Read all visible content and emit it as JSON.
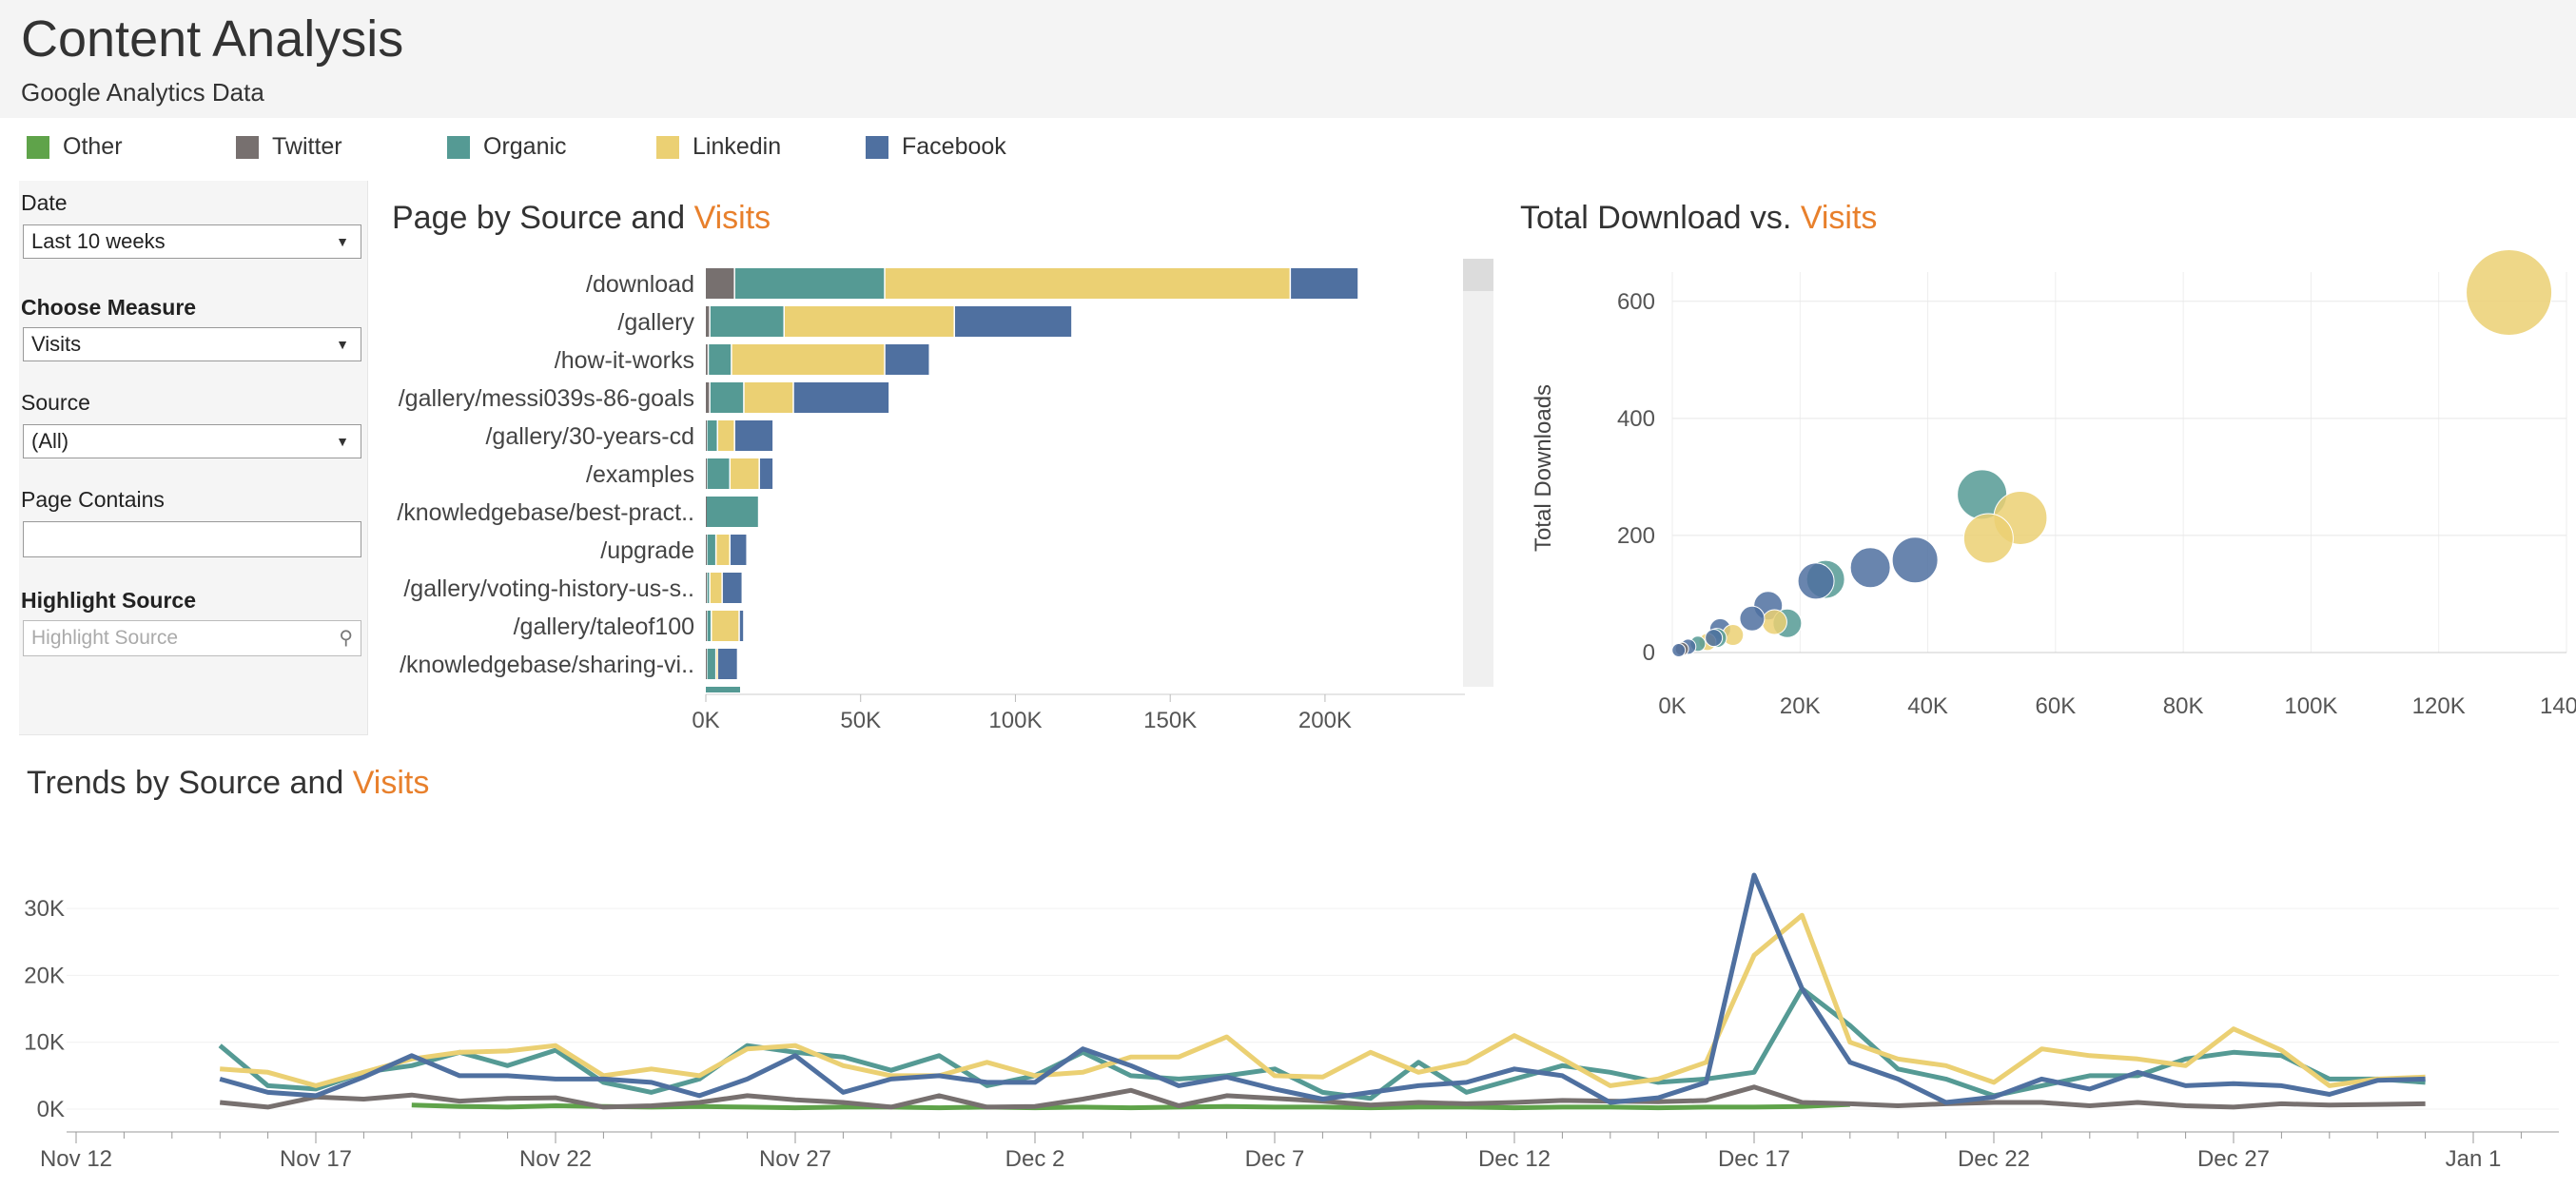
{
  "header": {
    "title": "Content Analysis",
    "subtitle": "Google Analytics Data"
  },
  "legend": [
    {
      "label": "Other",
      "color": "#5fa34a"
    },
    {
      "label": "Twitter",
      "color": "#77706f"
    },
    {
      "label": "Organic",
      "color": "#559a94"
    },
    {
      "label": "Linkedin",
      "color": "#ebd073"
    },
    {
      "label": "Facebook",
      "color": "#4f70a0"
    }
  ],
  "filters": {
    "date_label": "Date",
    "date_value": "Last 10 weeks",
    "measure_label": "Choose Measure",
    "measure_value": "Visits",
    "source_label": "Source",
    "source_value": "(All)",
    "page_contains_label": "Page Contains",
    "page_contains_value": "",
    "highlight_label": "Highlight Source",
    "highlight_placeholder": "Highlight Source"
  },
  "bar_title": {
    "prefix": "Page by Source and ",
    "accent": "Visits"
  },
  "scatter_title": {
    "prefix": "Total Download vs. ",
    "accent": "Visits"
  },
  "trend_title": {
    "prefix": "Trends by Source and ",
    "accent": "Visits"
  },
  "chart_data": [
    {
      "type": "bar",
      "orientation": "horizontal-stacked",
      "categories": [
        "/download",
        "/gallery",
        "/how-it-works",
        "/gallery/messi039s-86-goals",
        "/gallery/30-years-cd",
        "/examples",
        "/knowledgebase/best-pract..",
        "/upgrade",
        "/gallery/voting-history-us-s..",
        "/gallery/taleof100",
        "/knowledgebase/sharing-vi.."
      ],
      "series": [
        {
          "name": "Other",
          "values": [
            0,
            0,
            0,
            0,
            0,
            0,
            0,
            0,
            0,
            0,
            0
          ]
        },
        {
          "name": "Twitter",
          "values": [
            9500,
            1500,
            1000,
            1500,
            500,
            500,
            300,
            500,
            500,
            500,
            500
          ]
        },
        {
          "name": "Organic",
          "values": [
            48500,
            24000,
            7500,
            11000,
            3500,
            7500,
            17000,
            3000,
            1000,
            1500,
            3000
          ]
        },
        {
          "name": "Linkedin",
          "values": [
            131000,
            55000,
            49500,
            16000,
            5500,
            9500,
            0,
            4500,
            4000,
            9000,
            500
          ]
        },
        {
          "name": "Facebook",
          "values": [
            22000,
            38000,
            14500,
            31000,
            12500,
            4500,
            0,
            5500,
            6500,
            1500,
            6500
          ]
        }
      ],
      "xlim": [
        0,
        220000
      ],
      "xticks": [
        "0K",
        "50K",
        "100K",
        "150K",
        "200K"
      ]
    },
    {
      "type": "scatter",
      "ylabel": "Total Downloads",
      "xlim": [
        0,
        140000
      ],
      "ylim": [
        0,
        650
      ],
      "xticks": [
        "0K",
        "20K",
        "40K",
        "60K",
        "80K",
        "100K",
        "120K",
        "140K"
      ],
      "yticks": [
        "0",
        "200",
        "400",
        "600"
      ],
      "points": [
        {
          "series": "Linkedin",
          "x": 131000,
          "y": 615,
          "r": 90
        },
        {
          "series": "Organic",
          "x": 48500,
          "y": 270,
          "r": 52
        },
        {
          "series": "Linkedin",
          "x": 54500,
          "y": 230,
          "r": 56
        },
        {
          "series": "Linkedin",
          "x": 49500,
          "y": 195,
          "r": 52
        },
        {
          "series": "Facebook",
          "x": 38000,
          "y": 158,
          "r": 48
        },
        {
          "series": "Facebook",
          "x": 31000,
          "y": 145,
          "r": 42
        },
        {
          "series": "Organic",
          "x": 24000,
          "y": 125,
          "r": 40
        },
        {
          "series": "Facebook",
          "x": 22500,
          "y": 122,
          "r": 38
        },
        {
          "series": "Facebook",
          "x": 15000,
          "y": 80,
          "r": 30
        },
        {
          "series": "Organic",
          "x": 18000,
          "y": 50,
          "r": 30
        },
        {
          "series": "Linkedin",
          "x": 16000,
          "y": 52,
          "r": 26
        },
        {
          "series": "Facebook",
          "x": 12500,
          "y": 58,
          "r": 26
        },
        {
          "series": "Facebook",
          "x": 7500,
          "y": 40,
          "r": 22
        },
        {
          "series": "Linkedin",
          "x": 9500,
          "y": 30,
          "r": 22
        },
        {
          "series": "Organic",
          "x": 7000,
          "y": 25,
          "r": 20
        },
        {
          "series": "Linkedin",
          "x": 5500,
          "y": 18,
          "r": 18
        },
        {
          "series": "Facebook",
          "x": 6500,
          "y": 25,
          "r": 18
        },
        {
          "series": "Organic",
          "x": 4000,
          "y": 15,
          "r": 16
        },
        {
          "series": "Facebook",
          "x": 2500,
          "y": 10,
          "r": 16
        },
        {
          "series": "Twitter",
          "x": 1500,
          "y": 6,
          "r": 14
        },
        {
          "series": "Facebook",
          "x": 1000,
          "y": 4,
          "r": 14
        }
      ]
    },
    {
      "type": "line",
      "ylim": [
        0,
        35000
      ],
      "yticks": [
        "0K",
        "10K",
        "20K",
        "30K"
      ],
      "xticks": [
        "Nov 12",
        "Nov 17",
        "Nov 22",
        "Nov 27",
        "Dec 2",
        "Dec 7",
        "Dec 12",
        "Dec 17",
        "Dec 22",
        "Dec 27",
        "Jan 1"
      ],
      "x_dates": [
        "Nov 15",
        "Nov 16",
        "Nov 17",
        "Nov 18",
        "Nov 19",
        "Nov 20",
        "Nov 21",
        "Nov 22",
        "Nov 23",
        "Nov 24",
        "Nov 25",
        "Nov 26",
        "Nov 27",
        "Nov 28",
        "Nov 29",
        "Nov 30",
        "Dec 1",
        "Dec 2",
        "Dec 3",
        "Dec 4",
        "Dec 5",
        "Dec 6",
        "Dec 7",
        "Dec 8",
        "Dec 9",
        "Dec 10",
        "Dec 11",
        "Dec 12",
        "Dec 13",
        "Dec 14",
        "Dec 15",
        "Dec 16",
        "Dec 17",
        "Dec 18",
        "Dec 19",
        "Dec 20",
        "Dec 21",
        "Dec 22",
        "Dec 23",
        "Dec 24",
        "Dec 25",
        "Dec 26",
        "Dec 27",
        "Dec 28",
        "Dec 29",
        "Dec 30",
        "Dec 31"
      ],
      "series": [
        {
          "name": "Other",
          "values": [
            null,
            null,
            null,
            null,
            600,
            400,
            300,
            500,
            400,
            300,
            400,
            300,
            200,
            300,
            300,
            200,
            300,
            200,
            300,
            200,
            300,
            400,
            300,
            300,
            200,
            300,
            300,
            200,
            300,
            300,
            200,
            300,
            300,
            400,
            700,
            null,
            null,
            null,
            null,
            null,
            null,
            null,
            null,
            null,
            null,
            null,
            null
          ]
        },
        {
          "name": "Twitter",
          "values": [
            1000,
            300,
            1800,
            1500,
            2100,
            1200,
            1600,
            1700,
            300,
            500,
            1000,
            2000,
            1400,
            1000,
            300,
            2000,
            300,
            400,
            1500,
            2800,
            500,
            2000,
            1600,
            1200,
            600,
            1000,
            800,
            1000,
            1300,
            1200,
            1100,
            1300,
            3300,
            1000,
            800,
            500,
            800,
            1000,
            1000,
            500,
            1000,
            500,
            300,
            800,
            600,
            700,
            800
          ]
        },
        {
          "name": "Organic",
          "values": [
            9500,
            3500,
            3000,
            5500,
            6500,
            8500,
            6500,
            8800,
            4000,
            2500,
            4500,
            9500,
            8500,
            7800,
            5800,
            8000,
            3500,
            5000,
            8500,
            5000,
            4500,
            5000,
            6000,
            2500,
            1600,
            7000,
            2500,
            4500,
            6500,
            5500,
            4000,
            4500,
            5500,
            18000,
            12500,
            6000,
            4500,
            2000,
            3500,
            5000,
            5000,
            7500,
            8500,
            8000,
            4500,
            4500,
            4000
          ]
        },
        {
          "name": "Linkedin",
          "values": [
            6000,
            5500,
            3500,
            5500,
            7500,
            8500,
            8700,
            9500,
            5000,
            6000,
            5000,
            9000,
            9500,
            6500,
            5000,
            5000,
            7000,
            5000,
            5500,
            7800,
            7800,
            10800,
            5000,
            4800,
            8500,
            5500,
            7000,
            11000,
            7500,
            3500,
            4500,
            7000,
            23000,
            29000,
            10000,
            7500,
            6500,
            4000,
            9000,
            8000,
            7500,
            6500,
            12000,
            8800,
            3500,
            4500,
            4800
          ]
        },
        {
          "name": "Facebook",
          "values": [
            4500,
            2500,
            2000,
            4800,
            8000,
            5000,
            5000,
            4500,
            4500,
            4000,
            2000,
            4500,
            8000,
            2500,
            4500,
            5000,
            4000,
            4000,
            9000,
            6500,
            3500,
            4800,
            3000,
            1500,
            2500,
            3500,
            4000,
            6000,
            5000,
            1000,
            1700,
            4000,
            35000,
            18000,
            7000,
            4500,
            1000,
            1800,
            4500,
            3000,
            5500,
            3500,
            3800,
            3500,
            2200,
            4300,
            4500
          ]
        }
      ]
    }
  ]
}
